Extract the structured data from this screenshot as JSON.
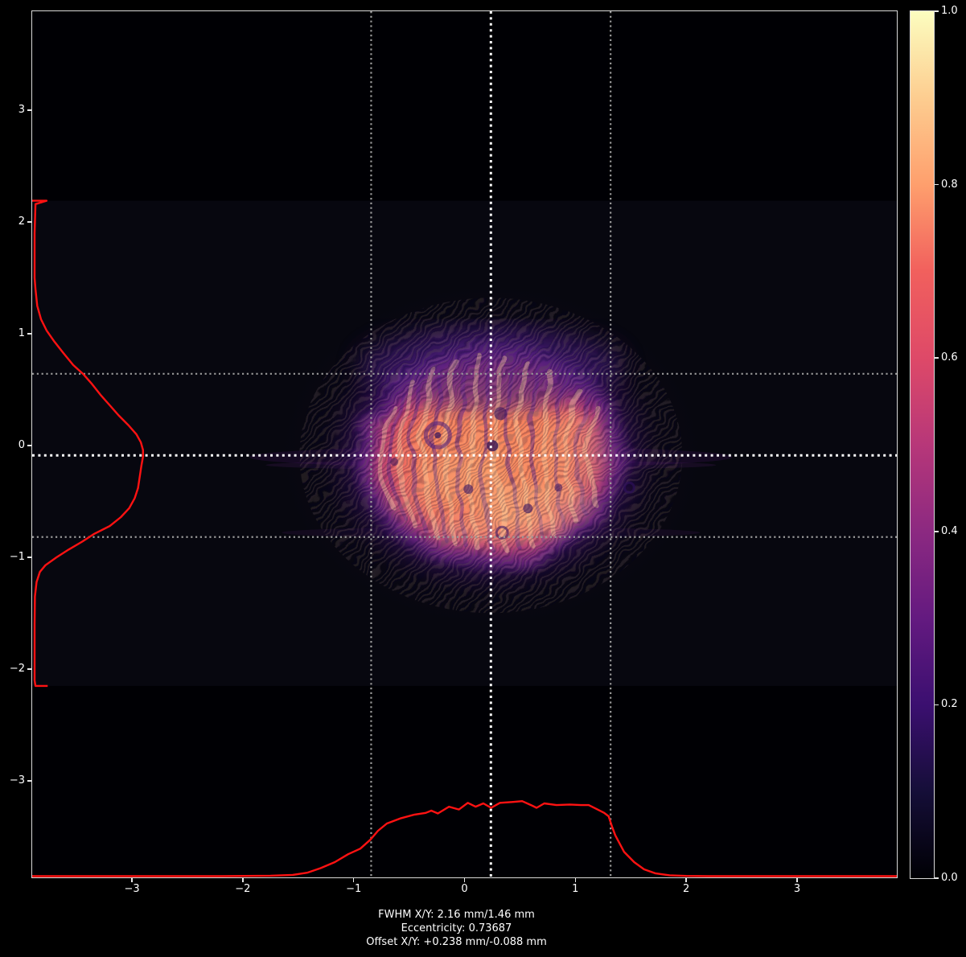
{
  "caption": {
    "lines": [
      "FWHM X/Y: 2.16 mm/1.46 mm",
      "Eccentricity: 0.73687",
      "Offset X/Y: +0.238 mm/-0.088 mm"
    ]
  },
  "chart_data": {
    "type": "heatmap",
    "title": "",
    "xlabel": "",
    "ylabel": "",
    "description": "Laser beam profile intensity image (magma colormap) with red marginal intensity profiles, dotted white crosshair at beam centroid and dotted gray FWHM marker lines, plus intensity colorbar.",
    "x_range": [
      -3.9,
      3.9
    ],
    "y_range": [
      -3.863,
      3.885
    ],
    "x_ticks": [
      {
        "value": -3,
        "label": "−3"
      },
      {
        "value": -2,
        "label": "−2"
      },
      {
        "value": -1,
        "label": "−1"
      },
      {
        "value": 0,
        "label": "0"
      },
      {
        "value": 1,
        "label": "1"
      },
      {
        "value": 2,
        "label": "2"
      },
      {
        "value": 3,
        "label": "3"
      }
    ],
    "y_ticks": [
      {
        "value": 3,
        "label": "3"
      },
      {
        "value": 2,
        "label": "2"
      },
      {
        "value": 1,
        "label": "1"
      },
      {
        "value": 0,
        "label": "0"
      },
      {
        "value": -1,
        "label": "−1"
      },
      {
        "value": -2,
        "label": "−2"
      },
      {
        "value": -3,
        "label": "−3"
      }
    ],
    "colormap": "magma",
    "colormap_stops": [
      "#fcfdbf",
      "#fdcd90",
      "#fe9f6d",
      "#f1605d",
      "#de4968",
      "#b73779",
      "#8c2981",
      "#641a80",
      "#3b0f70",
      "#150e38",
      "#000004"
    ],
    "colorbar": {
      "min": 0.0,
      "max": 1.0,
      "ticks": [
        {
          "value": 1.0,
          "label": "1.0"
        },
        {
          "value": 0.8,
          "label": "0.8"
        },
        {
          "value": 0.6,
          "label": "0.6"
        },
        {
          "value": 0.4,
          "label": "0.4"
        },
        {
          "value": 0.2,
          "label": "0.2"
        },
        {
          "value": 0.0,
          "label": "0.0"
        }
      ]
    },
    "beam": {
      "center_x_mm": 0.238,
      "center_y_mm": -0.088,
      "fwhm_x_mm": 2.16,
      "fwhm_y_mm": 1.46,
      "eccentricity": 0.73687,
      "peak_normalized_intensity": 1.0
    },
    "marker_lines": {
      "crosshair_x_mm": 0.238,
      "crosshair_y_mm": -0.088,
      "fwhm_x_mm": [
        -0.842,
        1.318
      ],
      "fwhm_y_mm": [
        0.642,
        -0.818
      ]
    },
    "roi_y_mm": [
      2.19,
      -2.15
    ],
    "profiles": {
      "y_profile": {
        "side": "left",
        "value_units": "axis units from left edge",
        "points": [
          [
            2.19,
            0.0
          ],
          [
            2.19,
            0.13
          ],
          [
            2.16,
            0.03
          ],
          [
            1.9,
            0.022
          ],
          [
            1.5,
            0.022
          ],
          [
            1.4,
            0.03
          ],
          [
            1.25,
            0.046
          ],
          [
            1.13,
            0.08
          ],
          [
            1.03,
            0.13
          ],
          [
            0.93,
            0.2
          ],
          [
            0.83,
            0.28
          ],
          [
            0.72,
            0.37
          ],
          [
            0.64,
            0.46
          ],
          [
            0.55,
            0.54
          ],
          [
            0.45,
            0.62
          ],
          [
            0.36,
            0.7
          ],
          [
            0.27,
            0.78
          ],
          [
            0.18,
            0.87
          ],
          [
            0.1,
            0.94
          ],
          [
            0.03,
            0.98
          ],
          [
            -0.04,
            1.0
          ],
          [
            -0.1,
            1.0
          ],
          [
            -0.18,
            0.985
          ],
          [
            -0.28,
            0.97
          ],
          [
            -0.38,
            0.955
          ],
          [
            -0.47,
            0.925
          ],
          [
            -0.56,
            0.875
          ],
          [
            -0.64,
            0.8
          ],
          [
            -0.72,
            0.7
          ],
          [
            -0.79,
            0.56
          ],
          [
            -0.86,
            0.45
          ],
          [
            -0.93,
            0.33
          ],
          [
            -1.0,
            0.22
          ],
          [
            -1.07,
            0.12
          ],
          [
            -1.13,
            0.07
          ],
          [
            -1.22,
            0.04
          ],
          [
            -1.35,
            0.025
          ],
          [
            -1.6,
            0.022
          ],
          [
            -2.1,
            0.022
          ],
          [
            -2.15,
            0.03
          ],
          [
            -2.15,
            0.14
          ]
        ]
      },
      "x_profile": {
        "side": "bottom",
        "baseline_y": -3.856,
        "value_units": "axis units above baseline",
        "points": [
          [
            -3.9,
            0.004
          ],
          [
            -2.2,
            0.004
          ],
          [
            -1.75,
            0.008
          ],
          [
            -1.55,
            0.015
          ],
          [
            -1.42,
            0.035
          ],
          [
            -1.3,
            0.075
          ],
          [
            -1.17,
            0.13
          ],
          [
            -1.05,
            0.2
          ],
          [
            -0.94,
            0.25
          ],
          [
            -0.85,
            0.33
          ],
          [
            -0.78,
            0.41
          ],
          [
            -0.7,
            0.475
          ],
          [
            -0.58,
            0.52
          ],
          [
            -0.45,
            0.555
          ],
          [
            -0.35,
            0.57
          ],
          [
            -0.3,
            0.59
          ],
          [
            -0.24,
            0.565
          ],
          [
            -0.14,
            0.625
          ],
          [
            -0.05,
            0.6
          ],
          [
            0.03,
            0.66
          ],
          [
            0.1,
            0.625
          ],
          [
            0.17,
            0.655
          ],
          [
            0.24,
            0.615
          ],
          [
            0.32,
            0.66
          ],
          [
            0.4,
            0.665
          ],
          [
            0.52,
            0.675
          ],
          [
            0.6,
            0.64
          ],
          [
            0.65,
            0.615
          ],
          [
            0.72,
            0.655
          ],
          [
            0.83,
            0.64
          ],
          [
            0.95,
            0.645
          ],
          [
            1.05,
            0.64
          ],
          [
            1.12,
            0.64
          ],
          [
            1.2,
            0.6
          ],
          [
            1.26,
            0.57
          ],
          [
            1.3,
            0.54
          ],
          [
            1.33,
            0.45
          ],
          [
            1.36,
            0.37
          ],
          [
            1.44,
            0.22
          ],
          [
            1.53,
            0.13
          ],
          [
            1.62,
            0.065
          ],
          [
            1.72,
            0.03
          ],
          [
            1.85,
            0.012
          ],
          [
            2.0,
            0.006
          ],
          [
            2.2,
            0.004
          ],
          [
            3.9,
            0.004
          ]
        ]
      }
    },
    "colors": {
      "profile_red": "#ff1212",
      "crosshair": "#ffffff",
      "fwhm_line": "#999999",
      "spine": "#d9d9d9",
      "tick_label": "#ffffff",
      "plot_background": "#000004"
    }
  }
}
